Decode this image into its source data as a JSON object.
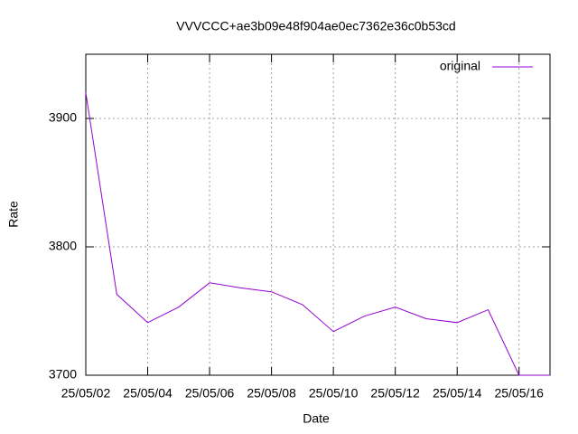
{
  "chart_data": {
    "type": "line",
    "title": "VVVCCC+ae3b09e48f904ae0ec7362e36c0b53cd",
    "x_label": "Date",
    "y_label": "Rate",
    "x": [
      "25/05/02",
      "25/05/03",
      "25/05/04",
      "25/05/05",
      "25/05/06",
      "25/05/07",
      "25/05/08",
      "25/05/09",
      "25/05/10",
      "25/05/11",
      "25/05/12",
      "25/05/13",
      "25/05/14",
      "25/05/15",
      "25/05/16",
      "25/05/17"
    ],
    "series": [
      {
        "name": "original",
        "color": "#9400d3",
        "values": [
          3920,
          3763,
          3741,
          3753,
          3772,
          3768,
          3765,
          3755,
          3734,
          3746,
          3753,
          3744,
          3741,
          3751,
          3700,
          3700
        ]
      }
    ],
    "xlim": [
      "25/05/02",
      "25/05/17"
    ],
    "xticks": [
      "25/05/02",
      "25/05/04",
      "25/05/06",
      "25/05/08",
      "25/05/10",
      "25/05/12",
      "25/05/14",
      "25/05/16"
    ],
    "ylim": [
      3700,
      3950
    ],
    "yticks": [
      3700,
      3800,
      3900
    ],
    "grid": true,
    "legend": "top-right"
  }
}
